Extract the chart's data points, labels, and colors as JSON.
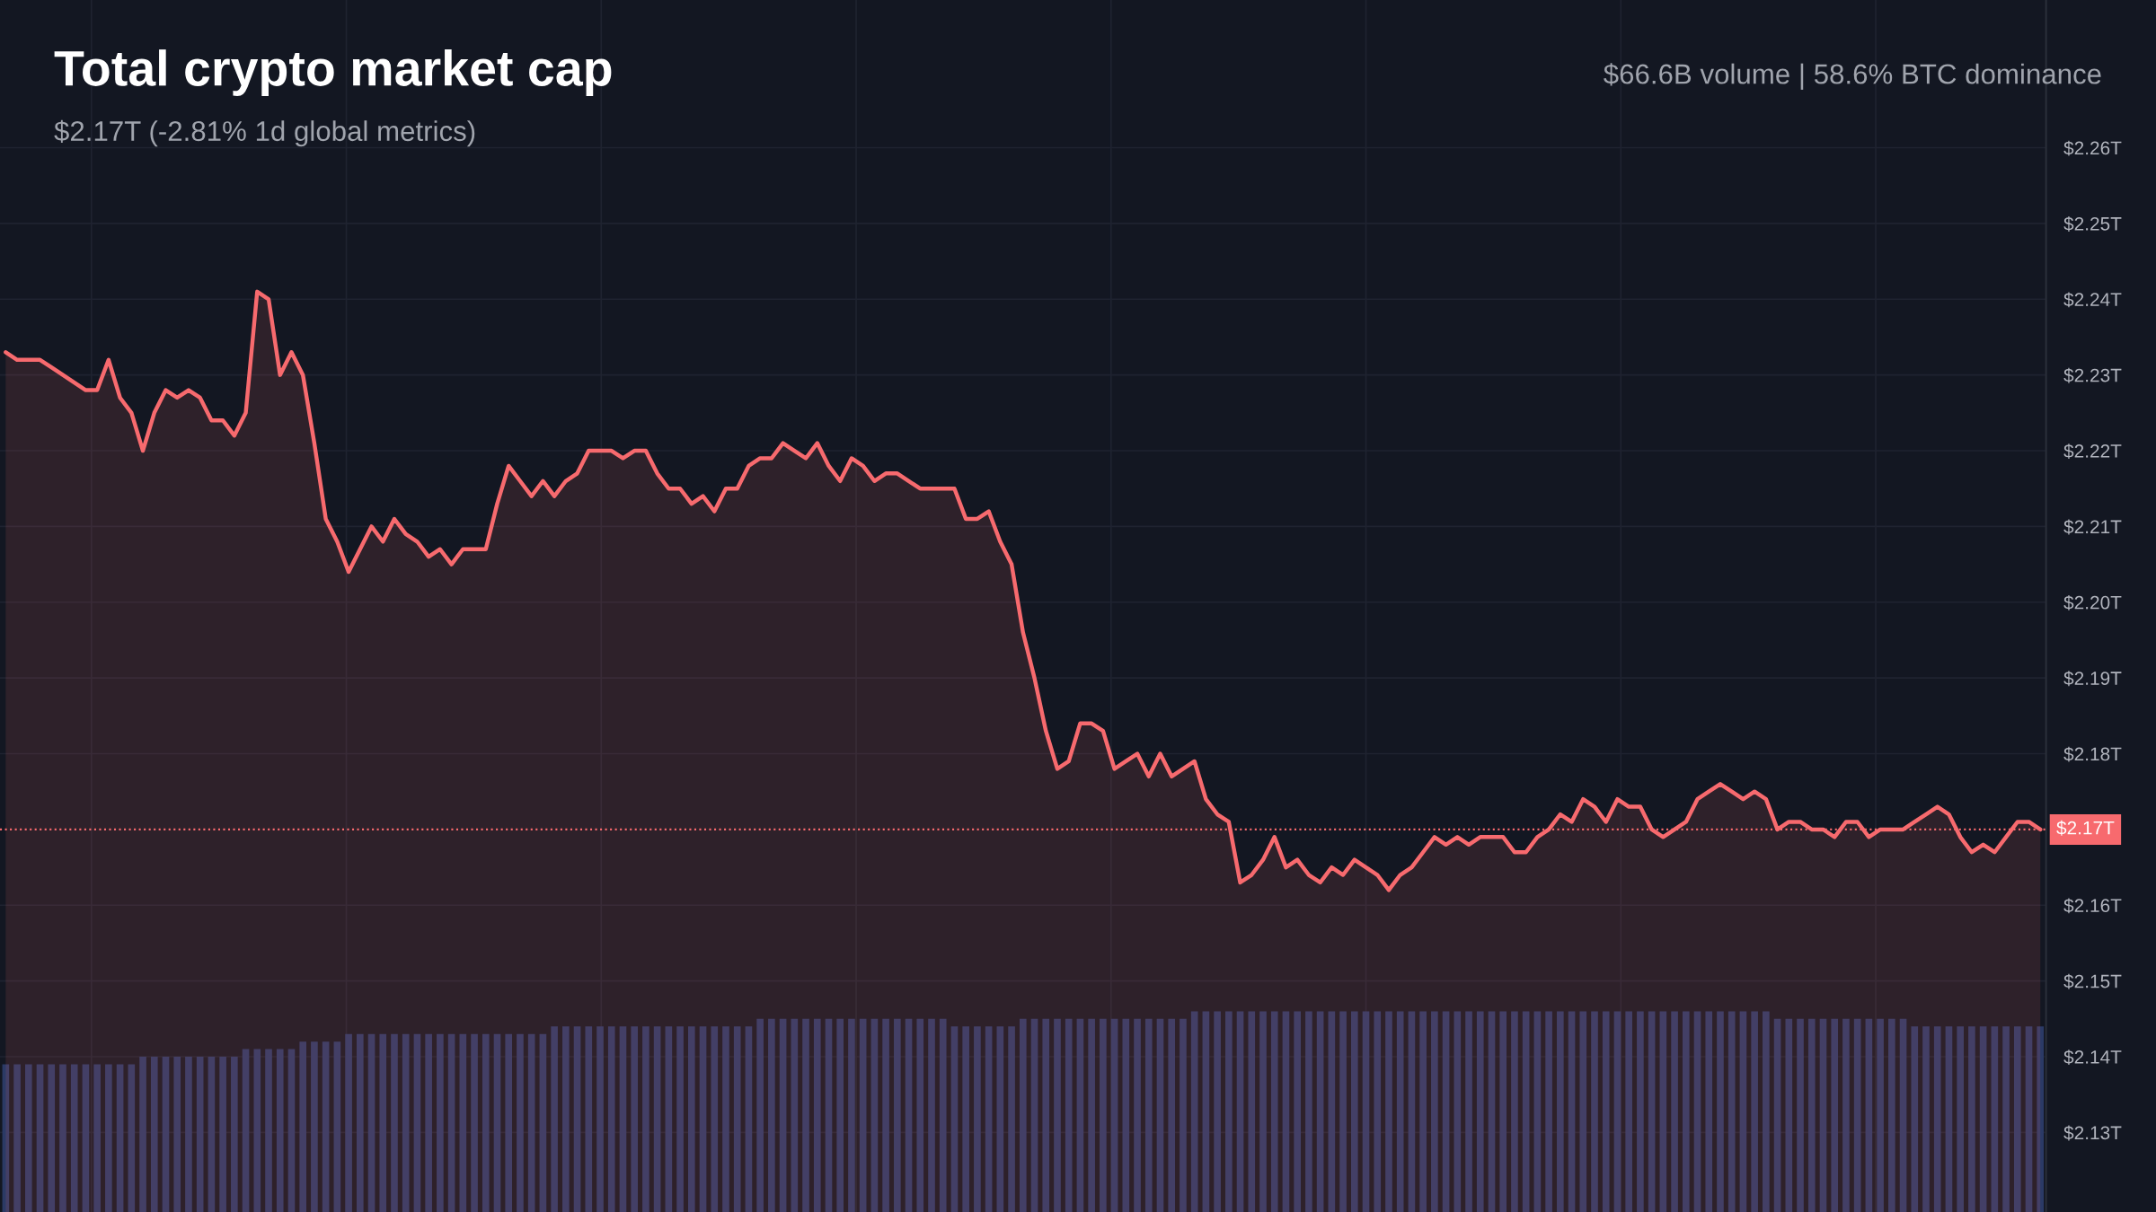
{
  "chart_data": {
    "type": "area",
    "title": "Total crypto market cap",
    "subtitle": "$2.17T (-2.81% 1d global metrics)",
    "annotations": [
      "$66.6B volume | 58.6% BTC dominance"
    ],
    "categories": [
      null,
      null,
      null,
      null,
      null,
      null,
      null,
      null,
      null,
      null,
      null,
      null,
      null,
      null,
      null,
      null,
      null,
      null,
      null,
      null,
      null,
      null,
      null,
      null,
      null,
      null,
      null,
      null,
      null,
      null,
      null,
      null,
      null,
      null,
      null,
      null,
      null,
      null,
      null,
      null,
      null,
      null,
      null,
      null,
      null,
      null,
      null,
      null,
      null,
      null,
      null,
      null,
      null,
      null,
      null,
      null,
      null,
      null,
      null,
      null,
      null,
      null,
      null,
      null,
      null,
      null,
      null,
      null,
      null,
      null,
      null,
      null,
      null,
      null,
      null,
      null,
      null,
      null,
      null,
      null,
      null,
      null,
      null,
      null,
      null,
      null,
      null,
      null,
      null,
      null,
      null,
      null,
      null,
      null,
      null,
      null,
      null,
      null,
      null,
      null,
      null,
      null,
      null,
      null,
      null,
      null,
      null,
      null,
      null,
      null,
      null,
      null,
      null,
      null,
      null,
      null,
      null,
      null,
      null,
      null,
      null,
      null,
      null,
      null,
      null,
      null,
      null,
      null,
      null,
      null,
      null,
      null,
      null,
      null,
      null,
      null,
      null,
      null,
      null,
      null,
      null,
      null,
      null,
      null,
      null,
      null,
      null,
      null,
      null,
      null,
      null,
      null,
      null,
      null,
      null,
      null,
      null,
      null,
      null,
      null,
      null,
      null,
      null,
      null,
      null,
      null,
      null,
      null,
      null,
      null,
      null,
      null,
      null,
      null,
      null,
      null,
      null,
      null,
      null
    ],
    "series": [
      {
        "type": "bar",
        "color": "#2b3a66",
        "values": [
          2.139,
          2.139,
          2.139,
          2.139,
          2.139,
          2.139,
          2.139,
          2.139,
          2.139,
          2.139,
          2.139,
          2.139,
          2.14,
          2.14,
          2.14,
          2.14,
          2.14,
          2.14,
          2.14,
          2.14,
          2.14,
          2.141,
          2.141,
          2.141,
          2.141,
          2.141,
          2.142,
          2.142,
          2.142,
          2.142,
          2.143,
          2.143,
          2.143,
          2.143,
          2.143,
          2.143,
          2.143,
          2.143,
          2.143,
          2.143,
          2.143,
          2.143,
          2.143,
          2.143,
          2.143,
          2.143,
          2.143,
          2.143,
          2.144,
          2.144,
          2.144,
          2.144,
          2.144,
          2.144,
          2.144,
          2.144,
          2.144,
          2.144,
          2.144,
          2.144,
          2.144,
          2.144,
          2.144,
          2.144,
          2.144,
          2.144,
          2.145,
          2.145,
          2.145,
          2.145,
          2.145,
          2.145,
          2.145,
          2.145,
          2.145,
          2.145,
          2.145,
          2.145,
          2.145,
          2.145,
          2.145,
          2.145,
          2.145,
          2.144,
          2.144,
          2.144,
          2.144,
          2.144,
          2.144,
          2.145,
          2.145,
          2.145,
          2.145,
          2.145,
          2.145,
          2.145,
          2.145,
          2.145,
          2.145,
          2.145,
          2.145,
          2.145,
          2.145,
          2.145,
          2.146,
          2.146,
          2.146,
          2.146,
          2.146,
          2.146,
          2.146,
          2.146,
          2.146,
          2.146,
          2.146,
          2.146,
          2.146,
          2.146,
          2.146,
          2.146,
          2.146,
          2.146,
          2.146,
          2.146,
          2.146,
          2.146,
          2.146,
          2.146,
          2.146,
          2.146,
          2.146,
          2.146,
          2.146,
          2.146,
          2.146,
          2.146,
          2.146,
          2.146,
          2.146,
          2.146,
          2.146,
          2.146,
          2.146,
          2.146,
          2.146,
          2.146,
          2.146,
          2.146,
          2.146,
          2.146,
          2.146,
          2.146,
          2.146,
          2.146,
          2.146,
          2.145,
          2.145,
          2.145,
          2.145,
          2.145,
          2.145,
          2.145,
          2.145,
          2.145,
          2.145,
          2.145,
          2.145,
          2.144,
          2.144,
          2.144,
          2.144,
          2.144,
          2.144,
          2.144,
          2.144,
          2.144,
          2.144,
          2.144,
          2.144
        ]
      },
      {
        "color": "#f76a6e",
        "values": [
          2.233,
          2.232,
          2.232,
          2.232,
          2.231,
          2.23,
          2.229,
          2.228,
          2.228,
          2.232,
          2.227,
          2.225,
          2.22,
          2.225,
          2.228,
          2.227,
          2.228,
          2.227,
          2.224,
          2.224,
          2.222,
          2.225,
          2.241,
          2.24,
          2.23,
          2.233,
          2.23,
          2.221,
          2.211,
          2.208,
          2.204,
          2.207,
          2.21,
          2.208,
          2.211,
          2.209,
          2.208,
          2.206,
          2.207,
          2.205,
          2.207,
          2.207,
          2.207,
          2.213,
          2.218,
          2.216,
          2.214,
          2.216,
          2.214,
          2.216,
          2.217,
          2.22,
          2.22,
          2.22,
          2.219,
          2.22,
          2.22,
          2.217,
          2.215,
          2.215,
          2.213,
          2.214,
          2.212,
          2.215,
          2.215,
          2.218,
          2.219,
          2.219,
          2.221,
          2.22,
          2.219,
          2.221,
          2.218,
          2.216,
          2.219,
          2.218,
          2.216,
          2.217,
          2.217,
          2.216,
          2.215,
          2.215,
          2.215,
          2.215,
          2.211,
          2.211,
          2.212,
          2.208,
          2.205,
          2.196,
          2.19,
          2.183,
          2.178,
          2.179,
          2.184,
          2.184,
          2.183,
          2.178,
          2.179,
          2.18,
          2.177,
          2.18,
          2.177,
          2.178,
          2.179,
          2.174,
          2.172,
          2.171,
          2.163,
          2.164,
          2.166,
          2.169,
          2.165,
          2.166,
          2.164,
          2.163,
          2.165,
          2.164,
          2.166,
          2.165,
          2.164,
          2.162,
          2.164,
          2.165,
          2.167,
          2.169,
          2.168,
          2.169,
          2.168,
          2.169,
          2.169,
          2.169,
          2.167,
          2.167,
          2.169,
          2.17,
          2.172,
          2.171,
          2.174,
          2.173,
          2.171,
          2.174,
          2.173,
          2.173,
          2.17,
          2.169,
          2.17,
          2.171,
          2.174,
          2.175,
          2.176,
          2.175,
          2.174,
          2.175,
          2.174,
          2.17,
          2.171,
          2.171,
          2.17,
          2.17,
          2.169,
          2.171,
          2.171,
          2.169,
          2.17,
          2.17,
          2.17,
          2.171,
          2.172,
          2.173,
          2.172,
          2.169,
          2.167,
          2.168,
          2.167,
          2.169,
          2.171,
          2.171,
          2.17
        ]
      }
    ],
    "ylim": [
      2.1195,
      2.2795
    ],
    "yticks": [
      {
        "value": 2.13,
        "label": "$2.13T"
      },
      {
        "value": 2.14,
        "label": "$2.14T"
      },
      {
        "value": 2.15,
        "label": "$2.15T"
      },
      {
        "value": 2.16,
        "label": "$2.16T"
      },
      {
        "value": 2.18,
        "label": "$2.18T"
      },
      {
        "value": 2.19,
        "label": "$2.19T"
      },
      {
        "value": 2.2,
        "label": "$2.20T"
      },
      {
        "value": 2.21,
        "label": "$2.21T"
      },
      {
        "value": 2.22,
        "label": "$2.22T"
      },
      {
        "value": 2.23,
        "label": "$2.23T"
      },
      {
        "value": 2.24,
        "label": "$2.24T"
      },
      {
        "value": 2.25,
        "label": "$2.25T"
      },
      {
        "value": 2.26,
        "label": "$2.26T"
      }
    ],
    "ref_lines": [
      {
        "axis": "y",
        "value": 2.17,
        "label": "$2.17T",
        "color": "#f76a6e",
        "line_style": "dotted"
      }
    ],
    "grid": true,
    "tick_labels": "y"
  }
}
